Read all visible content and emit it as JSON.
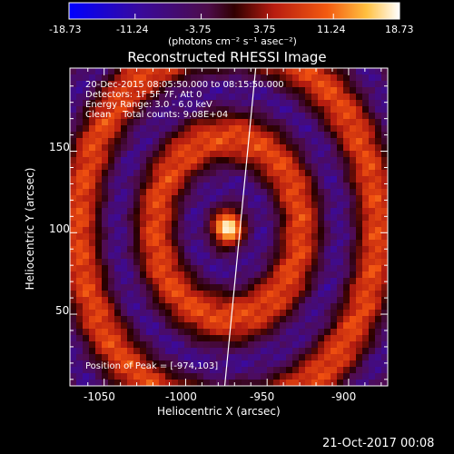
{
  "colorbar": {
    "ticks": [
      "-18.73",
      "-11.24",
      "-3.75",
      "3.75",
      "11.24",
      "18.73"
    ],
    "unit_label": "(photons cm⁻² s⁻¹ asec⁻²)",
    "min": -18.73,
    "max": 18.73
  },
  "title": "Reconstructed RHESSI Image",
  "info": {
    "line1": "20-Dec-2015 08:05:50.000 to 08:15:50.000",
    "line2": "Detectors: 1F 5F 7F, Att 0",
    "line3": "Energy Range: 3.0 - 6.0 keV",
    "line4": "Clean    Total counts: 9.08E+04"
  },
  "peak_text": "Position of Peak = [-974,103]",
  "footer_date": "21-Oct-2017 00:08",
  "chart_data": {
    "type": "heatmap",
    "title": "Reconstructed RHESSI Image",
    "xlabel": "Heliocentric X (arcsec)",
    "ylabel": "Heliocentric Y (arcsec)",
    "xlim": [
      -1071,
      -876
    ],
    "ylim": [
      6,
      201
    ],
    "xticks": [
      -1050,
      -1000,
      -950,
      -900
    ],
    "yticks": [
      50,
      100,
      150
    ],
    "peak": {
      "x": -974,
      "y": 103
    },
    "colorscale": "diverging blue-purple-red-yellow-white",
    "value_range": [
      -18.73,
      18.73
    ],
    "limb_line": [
      [
        -976,
        6
      ],
      [
        -957,
        201
      ]
    ]
  },
  "colors": {
    "background": "#000000",
    "text": "#ffffff",
    "limb": "#ffffff"
  }
}
